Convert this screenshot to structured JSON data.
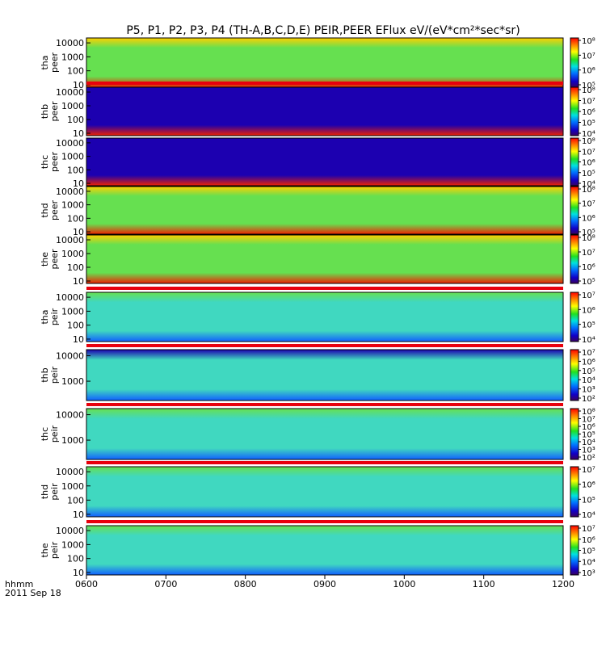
{
  "chart_data": {
    "type": "heatmap",
    "title": "P5, P1, P2, P3, P4 (TH-A,B,C,D,E) PEIR,PEER EFlux eV/(eV*cm²*sec*sr)",
    "x_tick_labels": [
      "0600",
      "0700",
      "0800",
      "0900",
      "1000",
      "1100",
      "1200"
    ],
    "x_range": [
      "0600",
      "1200"
    ],
    "x_label_lines": [
      "hhmm",
      "2011 Sep 18"
    ],
    "panels": [
      {
        "probe": "tha",
        "product": "peer",
        "y_ticks": [
          "10000",
          "1000",
          "100",
          "10"
        ],
        "yscale": "log",
        "colorbar_ticks": [
          "10⁵",
          "10⁶",
          "10⁷",
          "10⁸"
        ],
        "status_bar": false,
        "background": "green",
        "lowE": "red",
        "hiE": "yellow"
      },
      {
        "probe": "thb",
        "product": "peer",
        "y_ticks": [
          "10000",
          "1000",
          "100",
          "10"
        ],
        "yscale": "log",
        "colorbar_ticks": [
          "10⁴",
          "10⁵",
          "10⁶",
          "10⁷",
          "10⁸"
        ],
        "status_bar": true,
        "background": "navy",
        "lowE": "red",
        "hiE": "navy"
      },
      {
        "probe": "thc",
        "product": "peer",
        "y_ticks": [
          "10000",
          "1000",
          "100",
          "10"
        ],
        "yscale": "log",
        "colorbar_ticks": [
          "10⁴",
          "10⁵",
          "10⁶",
          "10⁷",
          "10⁸"
        ],
        "status_bar": false,
        "background": "navy",
        "lowE": "red",
        "hiE": "navy"
      },
      {
        "probe": "thd",
        "product": "peer",
        "y_ticks": [
          "10000",
          "1000",
          "100",
          "10"
        ],
        "yscale": "log",
        "colorbar_ticks": [
          "10⁵",
          "10⁶",
          "10⁷",
          "10⁸"
        ],
        "status_bar": false,
        "background": "green",
        "lowE": "red",
        "hiE": "yellow"
      },
      {
        "probe": "the",
        "product": "peer",
        "y_ticks": [
          "10000",
          "1000",
          "100",
          "10"
        ],
        "yscale": "log",
        "colorbar_ticks": [
          "10⁵",
          "10⁶",
          "10⁷",
          "10⁸"
        ],
        "status_bar": false,
        "background": "green",
        "lowE": "red",
        "hiE": "yellow"
      },
      {
        "probe": "tha",
        "product": "peir",
        "y_ticks": [
          "10000",
          "1000",
          "100",
          "10"
        ],
        "yscale": "log",
        "colorbar_ticks": [
          "10⁴",
          "10⁵",
          "10⁶",
          "10⁷"
        ],
        "status_bar": true,
        "background": "cyan",
        "lowE": "blue",
        "hiE": "green"
      },
      {
        "probe": "thb",
        "product": "peir",
        "y_ticks": [
          "10000",
          "1000"
        ],
        "yscale": "log",
        "colorbar_ticks": [
          "10²",
          "10³",
          "10⁴",
          "10⁵",
          "10⁶",
          "10⁷"
        ],
        "status_bar": true,
        "background": "cyan",
        "lowE": "blue",
        "hiE": "navy"
      },
      {
        "probe": "thc",
        "product": "peir",
        "y_ticks": [
          "10000",
          "1000"
        ],
        "yscale": "log",
        "colorbar_ticks": [
          "10²",
          "10³",
          "10⁴",
          "10⁵",
          "10⁶",
          "10⁷",
          "10⁸"
        ],
        "status_bar": true,
        "background": "cyan",
        "lowE": "blue",
        "hiE": "green"
      },
      {
        "probe": "thd",
        "product": "peir",
        "y_ticks": [
          "10000",
          "1000",
          "100",
          "10"
        ],
        "yscale": "log",
        "colorbar_ticks": [
          "10⁴",
          "10⁵",
          "10⁶",
          "10⁷"
        ],
        "status_bar": true,
        "background": "cyan",
        "lowE": "blue",
        "hiE": "green"
      },
      {
        "probe": "the",
        "product": "peir",
        "y_ticks": [
          "10000",
          "1000",
          "100",
          "10"
        ],
        "yscale": "log",
        "colorbar_ticks": [
          "10³",
          "10⁴",
          "10⁵",
          "10⁶",
          "10⁷"
        ],
        "status_bar": true,
        "background": "cyan",
        "lowE": "blue",
        "hiE": "green"
      }
    ]
  }
}
